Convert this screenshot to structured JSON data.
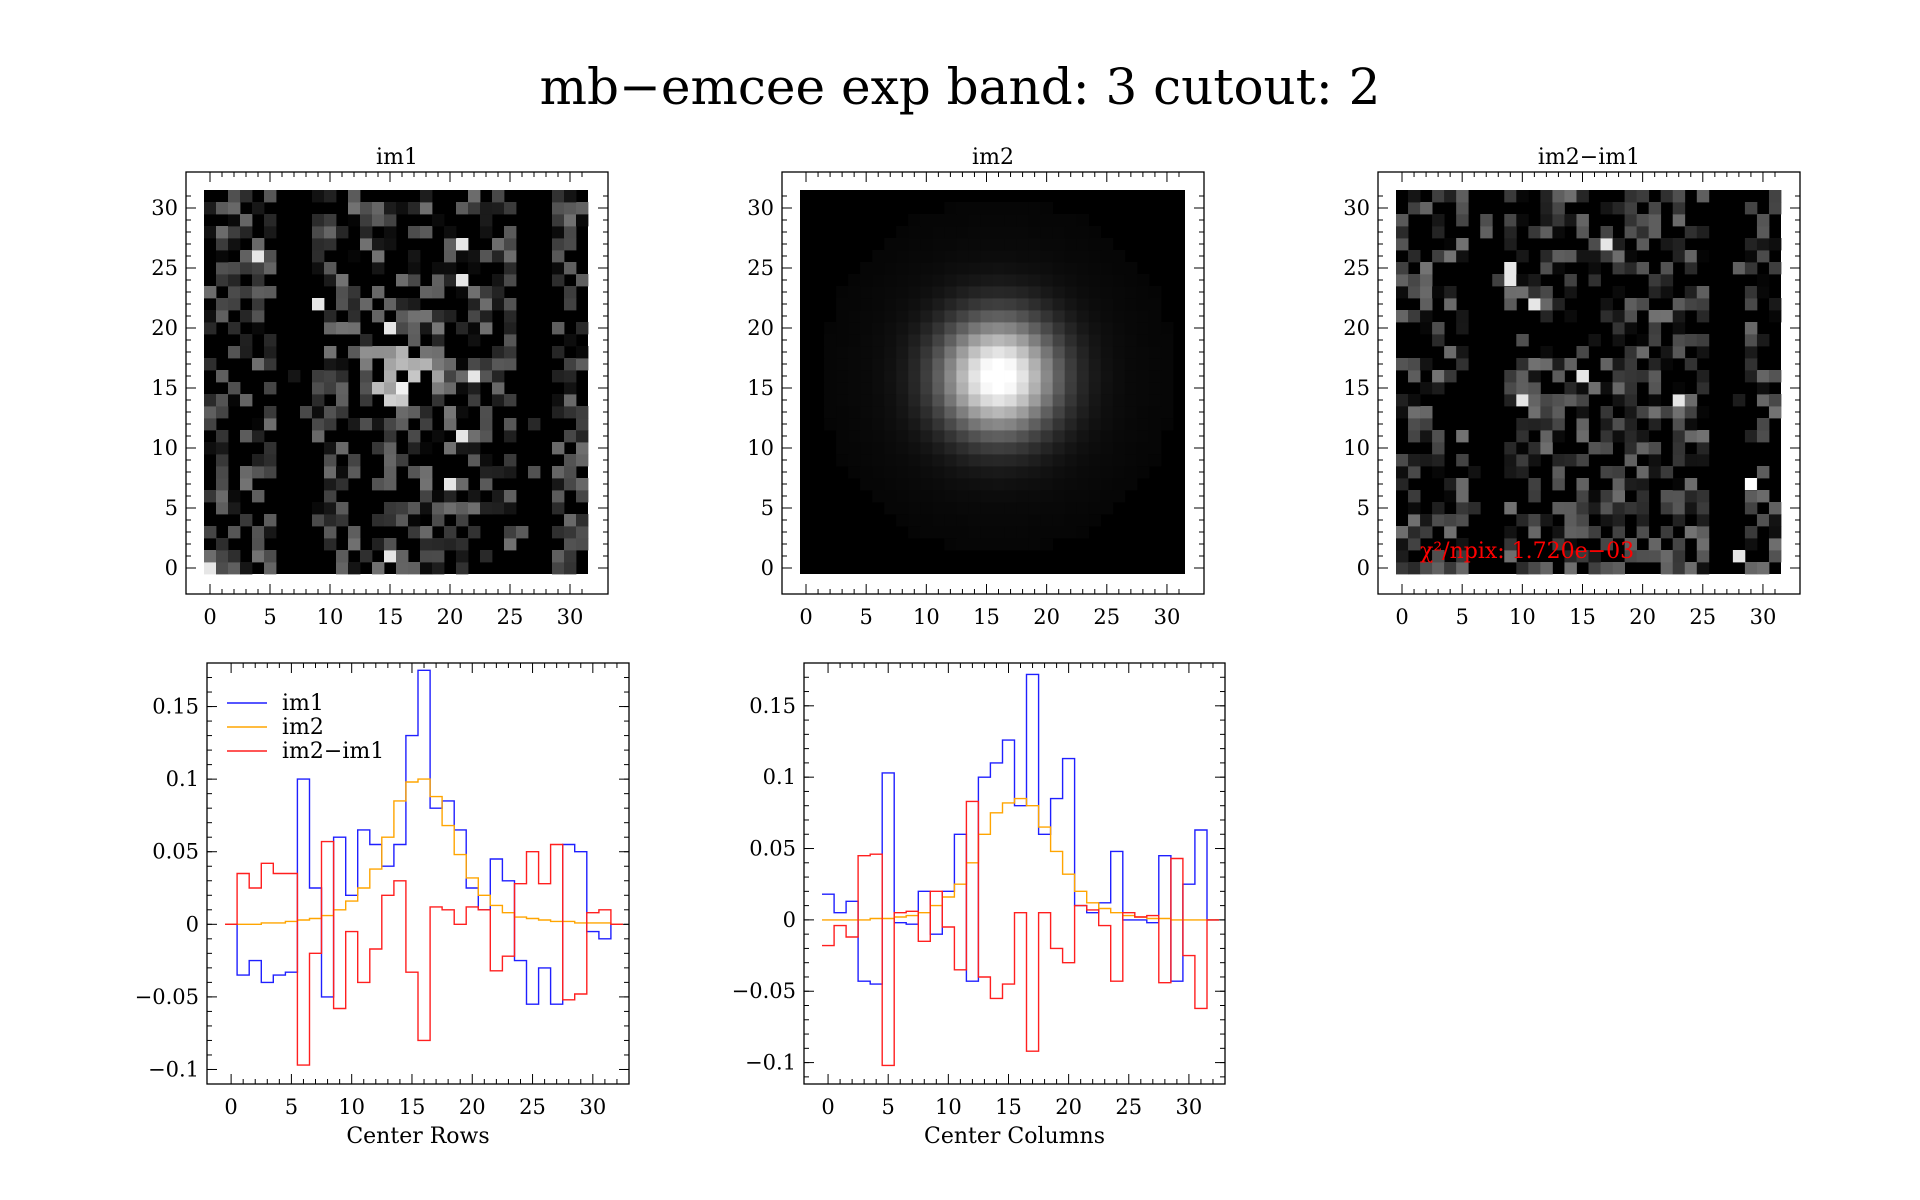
{
  "title": "mb−emcee exp band: 3 cutout: 2",
  "colors": {
    "im1": "#1f1fff",
    "im2": "#ffa500",
    "diff": "#ff1f1f",
    "chi_label": "#ff0000"
  },
  "panels": {
    "im1": {
      "title": "im1"
    },
    "im2": {
      "title": "im2"
    },
    "diff": {
      "title": "im2−im1",
      "chi_label": "χ²/npix: 1.720e−03"
    }
  },
  "chart_data": [
    {
      "type": "heatmap",
      "title": "im1",
      "xlim": [
        0,
        31
      ],
      "ylim": [
        0,
        31
      ],
      "xticks": [
        "0",
        "5",
        "10",
        "15",
        "20",
        "25",
        "30"
      ],
      "yticks": [
        "0",
        "5",
        "10",
        "15",
        "20",
        "25",
        "30"
      ]
    },
    {
      "type": "heatmap",
      "title": "im2",
      "xlim": [
        0,
        31
      ],
      "ylim": [
        0,
        31
      ],
      "xticks": [
        "0",
        "5",
        "10",
        "15",
        "20",
        "25",
        "30"
      ],
      "yticks": [
        "0",
        "5",
        "10",
        "15",
        "20",
        "25",
        "30"
      ]
    },
    {
      "type": "heatmap",
      "title": "im2−im1",
      "xlim": [
        0,
        31
      ],
      "ylim": [
        0,
        31
      ],
      "xticks": [
        "0",
        "5",
        "10",
        "15",
        "20",
        "25",
        "30"
      ],
      "yticks": [
        "0",
        "5",
        "10",
        "15",
        "20",
        "25",
        "30"
      ],
      "annotation": "χ²/npix: 1.720e−03"
    },
    {
      "type": "line",
      "xlabel": "Center Rows",
      "xlim": [
        -2,
        33
      ],
      "ylim": [
        -0.11,
        0.18
      ],
      "xticks": [
        "0",
        "5",
        "10",
        "15",
        "20",
        "25",
        "30"
      ],
      "yticks": [
        {
          "v": 0.15,
          "label": "0.15"
        },
        {
          "v": 0.1,
          "label": "0.1"
        },
        {
          "v": 0.05,
          "label": "0.05"
        },
        {
          "v": 0,
          "label": "0"
        },
        {
          "v": -0.05,
          "label": "−0.05"
        },
        {
          "v": -0.1,
          "label": "−0.1"
        }
      ],
      "legend": "top-left",
      "series": [
        {
          "name": "im1",
          "values": [
            0,
            -0.035,
            -0.025,
            -0.04,
            -0.035,
            -0.033,
            0.1,
            0.025,
            -0.05,
            0.06,
            0.02,
            0.065,
            0.055,
            0.04,
            0.055,
            0.13,
            0.175,
            0.08,
            0.085,
            0.065,
            0.025,
            0.01,
            0.045,
            0.03,
            -0.025,
            -0.055,
            -0.03,
            -0.055,
            0.055,
            0.05,
            -0.005,
            -0.01,
            0
          ]
        },
        {
          "name": "im2",
          "values": [
            0,
            0,
            0,
            0.001,
            0.001,
            0.002,
            0.003,
            0.004,
            0.006,
            0.01,
            0.016,
            0.025,
            0.038,
            0.06,
            0.085,
            0.098,
            0.1,
            0.088,
            0.068,
            0.048,
            0.032,
            0.02,
            0.013,
            0.008,
            0.005,
            0.004,
            0.003,
            0.002,
            0.002,
            0.001,
            0.001,
            0.001,
            0
          ]
        },
        {
          "name": "im2−im1",
          "values": [
            0,
            0.035,
            0.025,
            0.042,
            0.035,
            0.035,
            -0.097,
            -0.02,
            0.057,
            -0.058,
            -0.005,
            -0.04,
            -0.017,
            0.02,
            0.03,
            -0.033,
            -0.08,
            0.012,
            0.01,
            0.0,
            0.012,
            0.01,
            -0.032,
            -0.022,
            0.028,
            0.05,
            0.028,
            0.055,
            -0.052,
            -0.048,
            0.008,
            0.01,
            0
          ]
        }
      ]
    },
    {
      "type": "line",
      "xlabel": "Center Columns",
      "xlim": [
        -2,
        33
      ],
      "ylim": [
        -0.115,
        0.18
      ],
      "xticks": [
        "0",
        "5",
        "10",
        "15",
        "20",
        "25",
        "30"
      ],
      "yticks": [
        {
          "v": 0.15,
          "label": "0.15"
        },
        {
          "v": 0.1,
          "label": "0.1"
        },
        {
          "v": 0.05,
          "label": "0.05"
        },
        {
          "v": 0,
          "label": "0"
        },
        {
          "v": -0.05,
          "label": "−0.05"
        },
        {
          "v": -0.1,
          "label": "−0.1"
        }
      ],
      "series": [
        {
          "name": "im1",
          "values": [
            0.018,
            0.005,
            0.013,
            -0.043,
            -0.045,
            0.103,
            -0.002,
            -0.003,
            0.02,
            -0.01,
            0.02,
            0.06,
            -0.043,
            0.1,
            0.11,
            0.126,
            0.08,
            0.172,
            0.06,
            0.085,
            0.113,
            0.01,
            0.005,
            0.012,
            0.048,
            0.0,
            0.0,
            -0.002,
            0.045,
            -0.043,
            0.025,
            0.063,
            0.0
          ]
        },
        {
          "name": "im2",
          "values": [
            0,
            0,
            0,
            0,
            0.001,
            0.001,
            0.002,
            0.003,
            0.005,
            0.01,
            0.016,
            0.025,
            0.04,
            0.06,
            0.075,
            0.082,
            0.085,
            0.08,
            0.065,
            0.048,
            0.032,
            0.02,
            0.012,
            0.008,
            0.005,
            0.003,
            0.002,
            0.001,
            0.001,
            0.0,
            0.0,
            0.0,
            0
          ]
        },
        {
          "name": "im2−im1",
          "values": [
            -0.018,
            -0.004,
            -0.012,
            0.045,
            0.046,
            -0.102,
            0.005,
            0.006,
            -0.015,
            0.02,
            -0.005,
            -0.035,
            0.083,
            -0.04,
            -0.055,
            -0.045,
            0.005,
            -0.092,
            0.005,
            -0.02,
            -0.03,
            0.01,
            0.007,
            -0.004,
            -0.043,
            0.005,
            0.002,
            0.003,
            -0.044,
            0.043,
            -0.025,
            -0.062,
            0
          ]
        }
      ]
    }
  ]
}
